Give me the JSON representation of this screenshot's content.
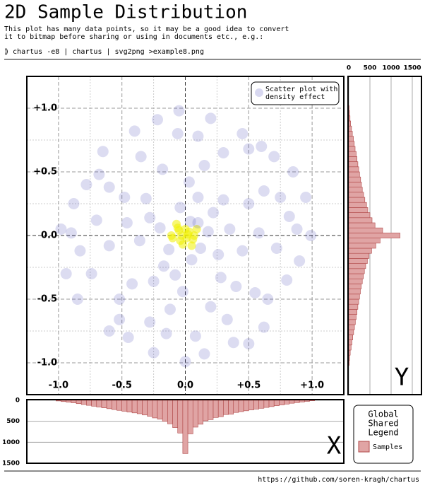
{
  "title": "2D Sample Distribution",
  "description": [
    "This plot has many data points, so it may be a good idea to convert",
    "it to bitmap before sharing or using in documents etc., e.g.:"
  ],
  "command": "⟫ chartus -e8 | chartus | svg2png >example8.png",
  "footer": "https://github.com/soren-kragh/chartus",
  "legend": {
    "title": [
      "Global",
      "Shared",
      "Legend"
    ],
    "name": "Samples",
    "color": "#e0a4a4",
    "edge": "#b04848"
  },
  "chart_data": [
    {
      "type": "scatter",
      "legend": [
        "Scatter plot with",
        "density effect"
      ],
      "color": "#3c3cb4",
      "density_color": "#f0f000",
      "xlim": [
        -1.25,
        1.25
      ],
      "ylim": [
        -1.25,
        1.25
      ],
      "xticks": [
        {
          "value": -1.0,
          "label": "-1.0"
        },
        {
          "value": -0.5,
          "label": "-0.5"
        },
        {
          "value": 0,
          "label": "0.0"
        },
        {
          "value": 0.5,
          "label": "+0.5"
        },
        {
          "value": 1.0,
          "label": "+1.0"
        }
      ],
      "yticks": [
        {
          "value": -1.0,
          "label": "-1.0"
        },
        {
          "value": -0.5,
          "label": "-0.5"
        },
        {
          "value": 0,
          "label": "0.0"
        },
        {
          "value": 0.5,
          "label": "+0.5"
        },
        {
          "value": 1.0,
          "label": "+1.0"
        }
      ],
      "minor_ticks": [
        -0.75,
        -0.25,
        0.25,
        0.75
      ],
      "grid": true,
      "x": [
        0.02,
        -0.05,
        0.06,
        -0.02,
        0.09,
        -0.1,
        0.04,
        -0.07,
        0.12,
        -0.13,
        0.18,
        -0.2,
        0.05,
        -0.04,
        0.22,
        -0.17,
        0.26,
        -0.28,
        0.1,
        -0.08,
        0.35,
        -0.36,
        0.3,
        -0.31,
        0.28,
        -0.25,
        0.03,
        -0.02,
        0.45,
        -0.46,
        0.5,
        -0.48,
        0.4,
        -0.42,
        0.15,
        -0.18,
        0.2,
        -0.12,
        0.58,
        -0.6,
        0.62,
        -0.6,
        0.55,
        -0.52,
        0.3,
        -0.35,
        0.33,
        -0.28,
        0.72,
        -0.7,
        0.75,
        -0.74,
        0.65,
        -0.68,
        0.1,
        -0.06,
        0.08,
        -0.15,
        0.5,
        -0.52,
        0.82,
        -0.83,
        0.8,
        -0.78,
        0.45,
        -0.4,
        0.38,
        -0.45,
        0.88,
        -0.9,
        0.9,
        -0.88,
        0.6,
        -0.65,
        0.62,
        -0.6,
        0.2,
        -0.22,
        0.15,
        -0.25,
        0.95,
        -0.94,
        0.7,
        -0.05,
        0.0,
        0.99,
        -0.98,
        0.5,
        -0.85,
        0.85,
        0.01,
        -0.03,
        0.03,
        0.0,
        -0.04,
        0.07,
        -0.06,
        0.05,
        0.1,
        -0.11
      ],
      "y": [
        0.01,
        0.04,
        -0.03,
        -0.07,
        0.05,
        -0.02,
        0.11,
        0.09,
        -0.1,
        -0.11,
        0.03,
        0.06,
        -0.19,
        0.22,
        0.18,
        -0.24,
        -0.15,
        0.14,
        0.3,
        -0.31,
        0.05,
        -0.04,
        0.28,
        0.29,
        -0.33,
        -0.36,
        0.42,
        -0.44,
        -0.12,
        0.1,
        0.25,
        0.3,
        -0.4,
        -0.38,
        0.55,
        0.52,
        -0.56,
        -0.58,
        0.02,
        -0.08,
        0.35,
        0.38,
        -0.45,
        -0.5,
        0.65,
        0.62,
        -0.66,
        -0.68,
        -0.1,
        0.12,
        0.3,
        -0.3,
        -0.5,
        0.48,
        0.78,
        0.8,
        -0.79,
        -0.77,
        0.68,
        -0.66,
        0.15,
        -0.12,
        -0.35,
        0.4,
        0.8,
        0.82,
        -0.84,
        -0.8,
        0.05,
        0.02,
        -0.2,
        0.25,
        0.7,
        0.66,
        -0.72,
        -0.75,
        0.92,
        0.91,
        -0.93,
        -0.92,
        0.3,
        -0.3,
        0.62,
        0.98,
        -0.99,
        0.0,
        0.05,
        -0.85,
        -0.5,
        0.5,
        -0.02,
        0.0,
        0.03,
        0.05,
        -0.04,
        0.0,
        0.06,
        -0.08,
        0.1,
        0.0
      ]
    },
    {
      "type": "histogram",
      "orientation": "horizontal",
      "axis_label": "Y",
      "xlim": [
        0,
        1717
      ],
      "xticks": [
        0,
        500,
        1000,
        1500
      ],
      "ylim": [
        -1.25,
        1.25
      ],
      "grid": true,
      "bins": [
        -1.02,
        -0.98,
        -0.94,
        -0.9,
        -0.86,
        -0.82,
        -0.78,
        -0.74,
        -0.7,
        -0.66,
        -0.62,
        -0.58,
        -0.54,
        -0.5,
        -0.46,
        -0.42,
        -0.38,
        -0.34,
        -0.3,
        -0.26,
        -0.22,
        -0.18,
        -0.14,
        -0.1,
        -0.06,
        -0.02,
        0.02,
        0.06,
        0.1,
        0.14,
        0.18,
        0.22,
        0.26,
        0.3,
        0.34,
        0.38,
        0.42,
        0.46,
        0.5,
        0.54,
        0.58,
        0.62,
        0.66,
        0.7,
        0.74,
        0.78,
        0.82,
        0.86,
        0.9,
        0.94,
        0.98,
        1.02
      ],
      "values": [
        10,
        20,
        35,
        55,
        75,
        95,
        115,
        135,
        155,
        175,
        195,
        215,
        235,
        255,
        275,
        295,
        320,
        345,
        370,
        400,
        440,
        480,
        540,
        640,
        740,
        1210,
        800,
        620,
        550,
        500,
        450,
        420,
        380,
        350,
        320,
        300,
        280,
        255,
        235,
        215,
        195,
        175,
        150,
        130,
        110,
        85,
        65,
        45,
        30,
        18,
        8
      ]
    },
    {
      "type": "histogram",
      "orientation": "vertical",
      "inverted": true,
      "axis_label": "X",
      "xlim": [
        -1.25,
        1.25
      ],
      "ylim": [
        0,
        1500
      ],
      "yticks": [
        0,
        500,
        1000,
        1500
      ],
      "grid": true,
      "bins": [
        -1.02,
        -0.98,
        -0.94,
        -0.9,
        -0.86,
        -0.82,
        -0.78,
        -0.74,
        -0.7,
        -0.66,
        -0.62,
        -0.58,
        -0.54,
        -0.5,
        -0.46,
        -0.42,
        -0.38,
        -0.34,
        -0.3,
        -0.26,
        -0.22,
        -0.18,
        -0.14,
        -0.1,
        -0.06,
        -0.02,
        0.02,
        0.06,
        0.1,
        0.14,
        0.18,
        0.22,
        0.26,
        0.3,
        0.34,
        0.38,
        0.42,
        0.46,
        0.5,
        0.54,
        0.58,
        0.62,
        0.66,
        0.7,
        0.74,
        0.78,
        0.82,
        0.86,
        0.9,
        0.94,
        0.98,
        1.02
      ],
      "values": [
        15,
        30,
        45,
        60,
        80,
        100,
        120,
        140,
        160,
        180,
        200,
        220,
        240,
        260,
        280,
        300,
        320,
        350,
        380,
        420,
        450,
        500,
        560,
        650,
        780,
        1270,
        800,
        640,
        570,
        490,
        460,
        410,
        390,
        340,
        330,
        290,
        270,
        250,
        230,
        210,
        190,
        170,
        150,
        130,
        110,
        90,
        70,
        55,
        40,
        25,
        10
      ]
    }
  ]
}
